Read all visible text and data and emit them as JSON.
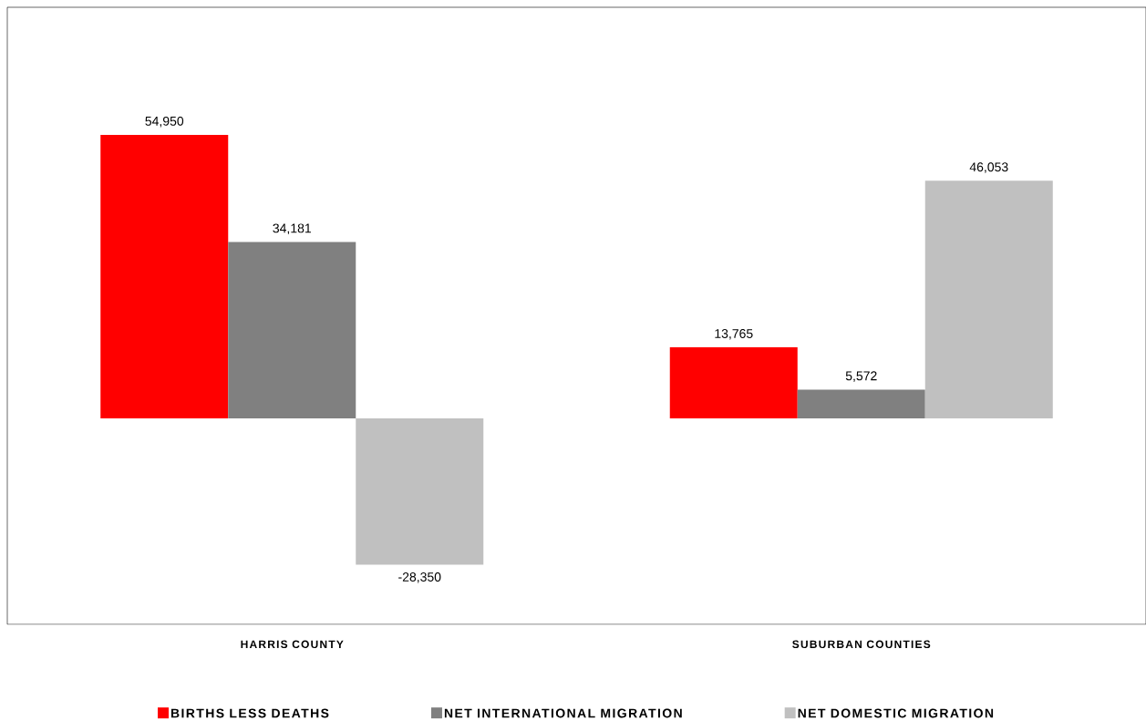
{
  "chart_data": {
    "type": "bar",
    "categories": [
      "HARRIS COUNTY",
      "SUBURBAN COUNTIES"
    ],
    "series": [
      {
        "name": "BIRTHS LESS DEATHS",
        "color": "#ff0000",
        "values": [
          54950,
          13765
        ],
        "value_labels": [
          "54,950",
          "13,765"
        ]
      },
      {
        "name": "NET INTERNATIONAL MIGRATION",
        "color": "#808080",
        "values": [
          34181,
          5572
        ],
        "value_labels": [
          "34,181",
          "5,572"
        ]
      },
      {
        "name": "NET DOMESTIC MIGRATION",
        "color": "#c0c0c0",
        "values": [
          -28350,
          46053
        ],
        "value_labels": [
          "-28,350",
          "46,053"
        ]
      }
    ],
    "legend": "bottom"
  }
}
